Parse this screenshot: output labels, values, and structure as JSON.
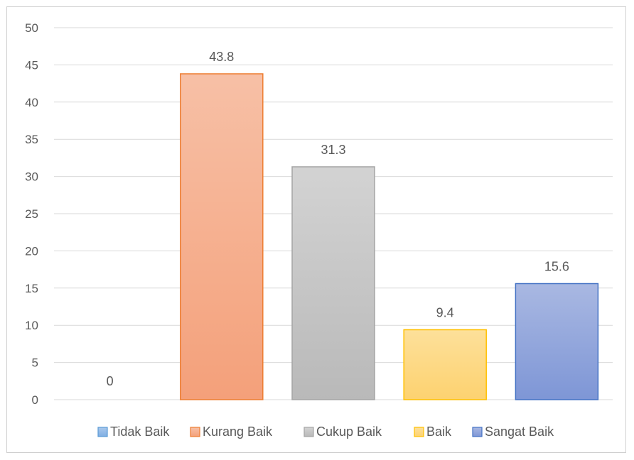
{
  "chart_data": {
    "type": "bar",
    "categories": [
      "Tidak Baik",
      "Kurang Baik",
      "Cukup Baik",
      "Baik",
      "Sangat Baik"
    ],
    "series": [
      {
        "values": [
          0,
          43.8,
          31.3,
          9.4,
          15.6
        ],
        "data_labels": [
          "0",
          "43.8",
          "31.3",
          "9.4",
          "15.6"
        ]
      }
    ],
    "colors": {
      "fill_top": [
        "#a9c8ec",
        "#f7c0a6",
        "#d3d3d3",
        "#fde09a",
        "#a9b8e2"
      ],
      "fill_bottom": [
        "#7faee3",
        "#f4a07a",
        "#b9b9b9",
        "#fdd270",
        "#7e96d6"
      ],
      "border": [
        "#5b9bd5",
        "#ed7d31",
        "#a5a5a5",
        "#ffc000",
        "#4472c4"
      ]
    },
    "ylim": [
      0,
      50
    ],
    "yticks": [
      "0",
      "5",
      "10",
      "15",
      "20",
      "25",
      "30",
      "35",
      "40",
      "45",
      "50"
    ],
    "title": "",
    "xlabel": "",
    "ylabel": "",
    "grid": true,
    "legend": {
      "position": "bottom",
      "entries": [
        "Tidak Baik",
        "Kurang Baik",
        "Cukup Baik",
        "Baik",
        "Sangat Baik"
      ]
    }
  }
}
